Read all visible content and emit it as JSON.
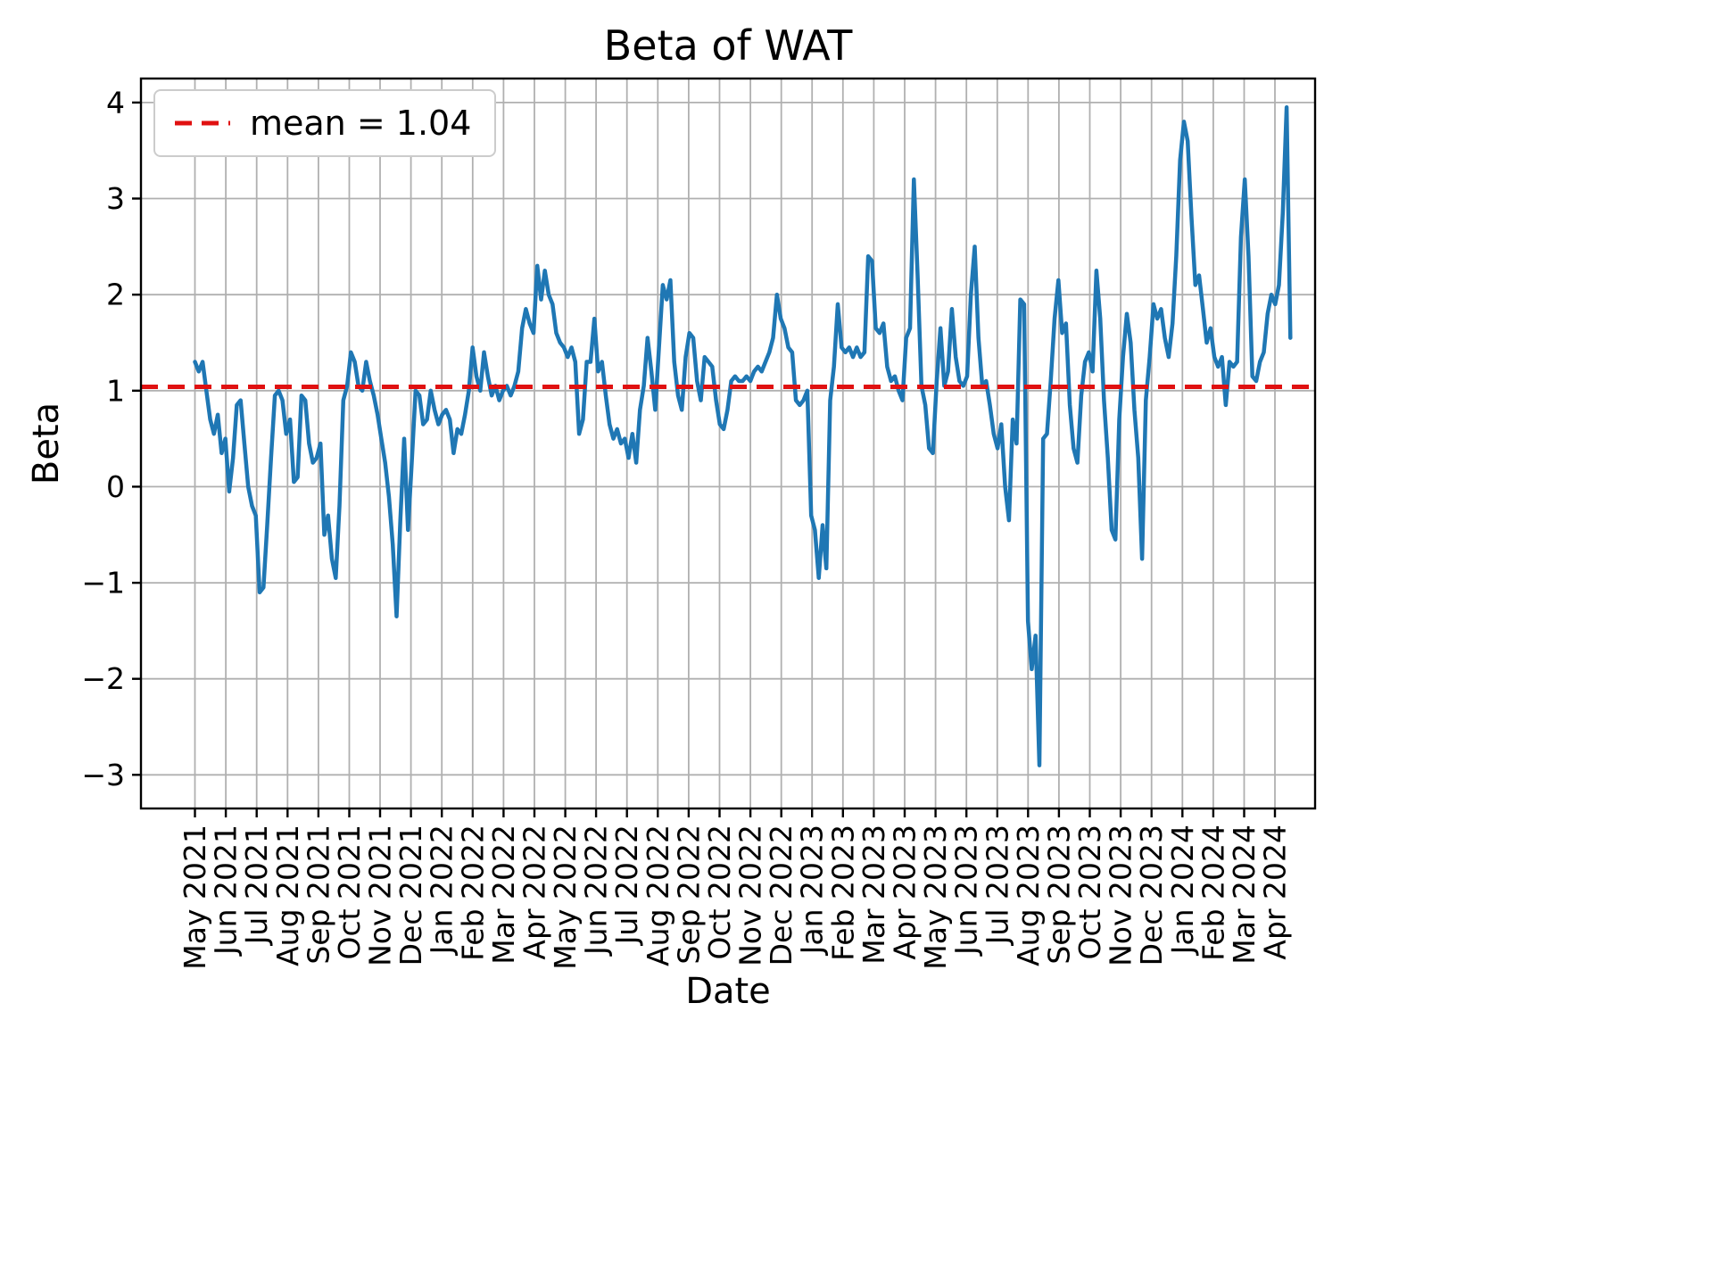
{
  "chart_data": {
    "type": "line",
    "title": "Beta of WAT",
    "xlabel": "Date",
    "ylabel": "Beta",
    "legend": {
      "label": "mean = 1.04",
      "position": "upper left"
    },
    "mean": 1.04,
    "grid": true,
    "colors": {
      "series": "#1f77b4",
      "mean_line": "#e01111",
      "grid": "#b0b0b0",
      "axes_edge": "#000000",
      "background": "#ffffff"
    },
    "xlim": [
      -1.75,
      36.3
    ],
    "ylim": [
      -3.35,
      4.25
    ],
    "x_ticks": {
      "labels": [
        "May 2021",
        "Jun 2021",
        "Jul 2021",
        "Aug 2021",
        "Sep 2021",
        "Oct 2021",
        "Nov 2021",
        "Dec 2021",
        "Jan 2022",
        "Feb 2022",
        "Mar 2022",
        "Apr 2022",
        "May 2022",
        "Jun 2022",
        "Jul 2022",
        "Aug 2022",
        "Sep 2022",
        "Oct 2022",
        "Nov 2022",
        "Dec 2022",
        "Jan 2023",
        "Feb 2023",
        "Mar 2023",
        "Apr 2023",
        "May 2023",
        "Jun 2023",
        "Jul 2023",
        "Aug 2023",
        "Sep 2023",
        "Oct 2023",
        "Nov 2023",
        "Dec 2023",
        "Jan 2024",
        "Feb 2024",
        "Mar 2024",
        "Apr 2024"
      ]
    },
    "y_ticks": {
      "values": [
        4,
        3,
        2,
        1,
        0,
        -1,
        -2,
        -3
      ],
      "labels": [
        "4",
        "3",
        "2",
        "1",
        "0",
        "−1",
        "−2",
        "−3"
      ]
    },
    "series": [
      {
        "name": "Beta of WAT",
        "x_start": 0.0,
        "x_end": 35.5,
        "values": [
          1.3,
          1.2,
          1.3,
          1.0,
          0.7,
          0.55,
          0.75,
          0.35,
          0.5,
          -0.05,
          0.3,
          0.85,
          0.9,
          0.45,
          0.0,
          -0.2,
          -0.3,
          -1.1,
          -1.05,
          -0.4,
          0.3,
          0.95,
          1.0,
          0.9,
          0.55,
          0.7,
          0.05,
          0.1,
          0.95,
          0.9,
          0.45,
          0.25,
          0.3,
          0.45,
          -0.5,
          -0.3,
          -0.75,
          -0.95,
          -0.2,
          0.9,
          1.05,
          1.4,
          1.3,
          1.05,
          1.0,
          1.3,
          1.1,
          0.95,
          0.75,
          0.5,
          0.25,
          -0.1,
          -0.6,
          -1.35,
          -0.35,
          0.5,
          -0.45,
          0.25,
          1.0,
          0.95,
          0.65,
          0.7,
          1.0,
          0.8,
          0.65,
          0.75,
          0.8,
          0.7,
          0.35,
          0.6,
          0.55,
          0.75,
          1.0,
          1.45,
          1.15,
          1.0,
          1.4,
          1.15,
          0.95,
          1.05,
          0.9,
          1.0,
          1.05,
          0.95,
          1.05,
          1.2,
          1.65,
          1.85,
          1.7,
          1.6,
          2.3,
          1.95,
          2.25,
          2.0,
          1.9,
          1.6,
          1.5,
          1.45,
          1.35,
          1.45,
          1.3,
          0.55,
          0.7,
          1.3,
          1.3,
          1.75,
          1.2,
          1.3,
          0.95,
          0.65,
          0.5,
          0.6,
          0.45,
          0.5,
          0.3,
          0.55,
          0.25,
          0.8,
          1.05,
          1.55,
          1.2,
          0.8,
          1.45,
          2.1,
          1.95,
          2.15,
          1.3,
          0.95,
          0.8,
          1.35,
          1.6,
          1.55,
          1.1,
          0.9,
          1.35,
          1.3,
          1.25,
          0.9,
          0.65,
          0.6,
          0.8,
          1.1,
          1.15,
          1.1,
          1.1,
          1.15,
          1.1,
          1.2,
          1.25,
          1.2,
          1.3,
          1.4,
          1.55,
          2.0,
          1.75,
          1.65,
          1.45,
          1.4,
          0.9,
          0.85,
          0.9,
          1.0,
          -0.3,
          -0.45,
          -0.95,
          -0.4,
          -0.85,
          0.9,
          1.25,
          1.9,
          1.45,
          1.4,
          1.45,
          1.35,
          1.45,
          1.35,
          1.4,
          2.4,
          2.35,
          1.65,
          1.6,
          1.7,
          1.25,
          1.1,
          1.15,
          1.0,
          0.9,
          1.55,
          1.65,
          3.2,
          2.2,
          1.05,
          0.85,
          0.4,
          0.35,
          1.1,
          1.65,
          1.05,
          1.2,
          1.85,
          1.35,
          1.1,
          1.05,
          1.15,
          2.0,
          2.5,
          1.55,
          1.05,
          1.1,
          0.85,
          0.55,
          0.4,
          0.65,
          0.0,
          -0.35,
          0.7,
          0.45,
          1.95,
          1.9,
          -1.4,
          -1.9,
          -1.55,
          -2.9,
          0.5,
          0.55,
          1.1,
          1.75,
          2.15,
          1.6,
          1.7,
          0.85,
          0.4,
          0.25,
          0.95,
          1.3,
          1.4,
          1.2,
          2.25,
          1.75,
          0.9,
          0.3,
          -0.45,
          -0.55,
          0.7,
          1.35,
          1.8,
          1.5,
          0.8,
          0.3,
          -0.75,
          0.9,
          1.35,
          1.9,
          1.75,
          1.85,
          1.55,
          1.35,
          1.7,
          2.4,
          3.4,
          3.8,
          3.6,
          2.8,
          2.1,
          2.2,
          1.85,
          1.5,
          1.65,
          1.35,
          1.25,
          1.35,
          0.85,
          1.3,
          1.25,
          1.3,
          2.6,
          3.2,
          2.4,
          1.15,
          1.1,
          1.3,
          1.4,
          1.8,
          2.0,
          1.9,
          2.1,
          2.85,
          3.95,
          1.55
        ]
      }
    ]
  }
}
